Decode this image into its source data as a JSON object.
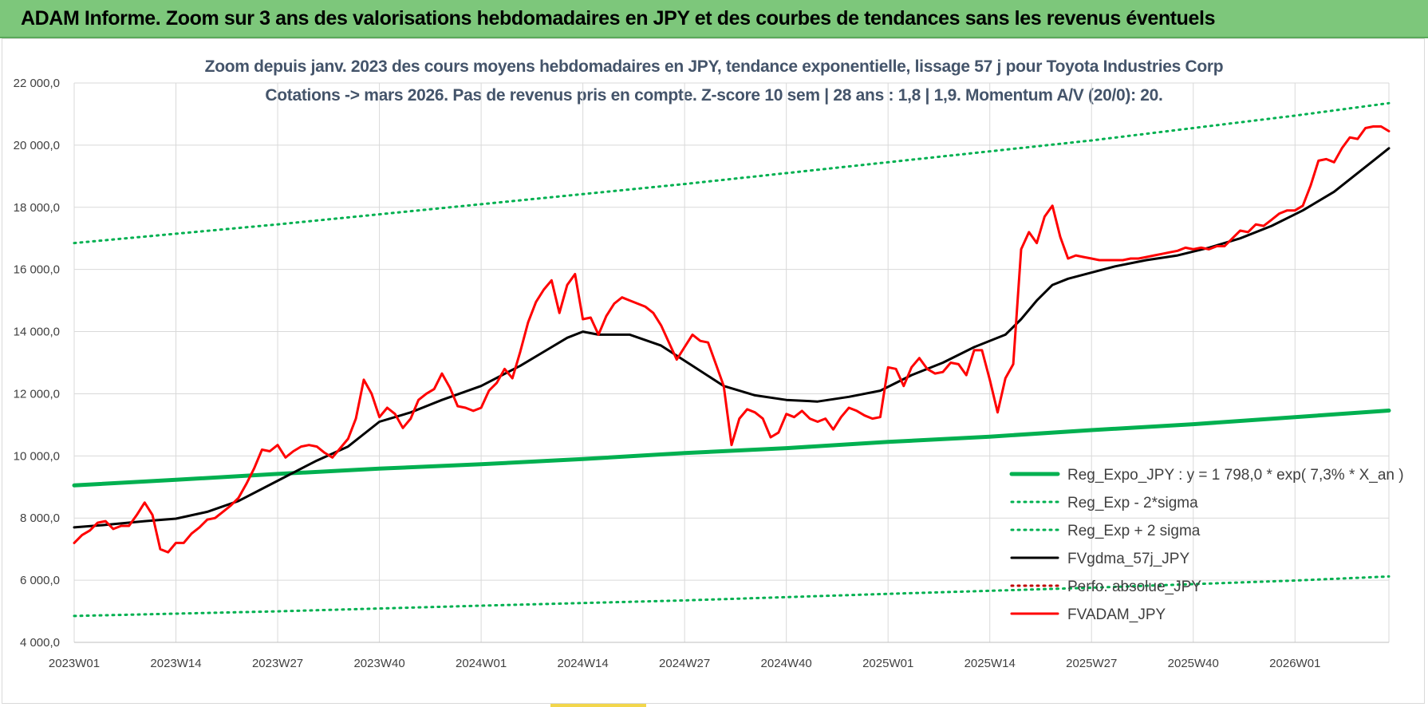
{
  "header": {
    "title": "ADAM Informe. Zoom sur 3 ans des valorisations hebdomadaires en JPY et des courbes de tendances sans les revenus éventuels"
  },
  "chart_data": {
    "type": "line",
    "title_line1": "Zoom depuis janv. 2023 des cours moyens hebdomadaires en JPY, tendance exponentielle, lissage 57 j pour Toyota Industries Corp",
    "title_line2": "Cotations -> mars 2026. Pas de revenus pris en compte. Z-score 10 sem | 28 ans : 1,8 | 1,9. Momentum A/V (20/0): 20.",
    "x_tick_labels": [
      "2023W01",
      "2023W14",
      "2023W27",
      "2023W40",
      "2024W01",
      "2024W14",
      "2024W27",
      "2024W40",
      "2025W01",
      "2025W14",
      "2025W27",
      "2025W40",
      "2026W01"
    ],
    "y_tick_labels": [
      "4 000,0",
      "6 000,0",
      "8 000,0",
      "10 000,0",
      "12 000,0",
      "14 000,0",
      "16 000,0",
      "18 000,0",
      "20 000,0",
      "22 000,0"
    ],
    "ylim": [
      4000,
      22000
    ],
    "grid": true,
    "legend_position": "bottom-right",
    "colors": {
      "trend": "#00b050",
      "band": "#00b050",
      "smooth": "#000000",
      "perfo": "#c00000",
      "price": "#ff0000"
    },
    "series": [
      {
        "name": "Reg_Expo_JPY : y = 1 798,0 * exp( 7,3% *  X_an )",
        "style": "thick-solid",
        "color": "#00b050",
        "points": [
          [
            1,
            9050
          ],
          [
            14,
            9230
          ],
          [
            27,
            9420
          ],
          [
            40,
            9590
          ],
          [
            53,
            9730
          ],
          [
            66,
            9900
          ],
          [
            79,
            10090
          ],
          [
            92,
            10250
          ],
          [
            105,
            10450
          ],
          [
            118,
            10620
          ],
          [
            131,
            10830
          ],
          [
            144,
            11020
          ],
          [
            157,
            11250
          ],
          [
            169,
            11460
          ]
        ]
      },
      {
        "name": "Reg_Exp - 2*sigma",
        "style": "dotted",
        "color": "#00b050",
        "points": [
          [
            1,
            4850
          ],
          [
            27,
            5000
          ],
          [
            53,
            5180
          ],
          [
            79,
            5350
          ],
          [
            105,
            5560
          ],
          [
            131,
            5760
          ],
          [
            157,
            5990
          ],
          [
            169,
            6120
          ]
        ]
      },
      {
        "name": "Reg_Exp + 2 sigma",
        "style": "dotted",
        "color": "#00b050",
        "points": [
          [
            1,
            16850
          ],
          [
            27,
            17450
          ],
          [
            53,
            18100
          ],
          [
            79,
            18750
          ],
          [
            105,
            19450
          ],
          [
            131,
            20150
          ],
          [
            157,
            20950
          ],
          [
            169,
            21350
          ]
        ]
      },
      {
        "name": "FVgdma_57j_JPY",
        "style": "solid",
        "color": "#000000",
        "points": [
          [
            1,
            7700
          ],
          [
            5,
            7780
          ],
          [
            10,
            7900
          ],
          [
            14,
            7980
          ],
          [
            18,
            8200
          ],
          [
            22,
            8550
          ],
          [
            27,
            9200
          ],
          [
            32,
            9850
          ],
          [
            36,
            10300
          ],
          [
            40,
            11100
          ],
          [
            44,
            11400
          ],
          [
            48,
            11800
          ],
          [
            53,
            12250
          ],
          [
            58,
            12900
          ],
          [
            62,
            13500
          ],
          [
            64,
            13800
          ],
          [
            66,
            14000
          ],
          [
            68,
            13900
          ],
          [
            72,
            13900
          ],
          [
            76,
            13550
          ],
          [
            80,
            12900
          ],
          [
            84,
            12250
          ],
          [
            88,
            11950
          ],
          [
            92,
            11800
          ],
          [
            96,
            11750
          ],
          [
            100,
            11900
          ],
          [
            104,
            12100
          ],
          [
            108,
            12600
          ],
          [
            112,
            13000
          ],
          [
            116,
            13500
          ],
          [
            120,
            13900
          ],
          [
            122,
            14400
          ],
          [
            124,
            15000
          ],
          [
            126,
            15500
          ],
          [
            128,
            15700
          ],
          [
            131,
            15900
          ],
          [
            134,
            16100
          ],
          [
            138,
            16300
          ],
          [
            142,
            16450
          ],
          [
            146,
            16700
          ],
          [
            150,
            17000
          ],
          [
            154,
            17400
          ],
          [
            158,
            17900
          ],
          [
            162,
            18500
          ],
          [
            165,
            19100
          ],
          [
            167,
            19500
          ],
          [
            169,
            19900
          ]
        ]
      },
      {
        "name": "Perfo. absolue_JPY",
        "style": "dotted",
        "color": "#c00000",
        "points": []
      },
      {
        "name": "FVADAM_JPY",
        "style": "solid",
        "color": "#ff0000",
        "points": [
          [
            1,
            7200
          ],
          [
            2,
            7450
          ],
          [
            3,
            7600
          ],
          [
            4,
            7850
          ],
          [
            5,
            7900
          ],
          [
            6,
            7650
          ],
          [
            7,
            7750
          ],
          [
            8,
            7750
          ],
          [
            9,
            8100
          ],
          [
            10,
            8500
          ],
          [
            11,
            8100
          ],
          [
            12,
            7000
          ],
          [
            13,
            6900
          ],
          [
            14,
            7200
          ],
          [
            15,
            7200
          ],
          [
            16,
            7500
          ],
          [
            17,
            7700
          ],
          [
            18,
            7950
          ],
          [
            19,
            8000
          ],
          [
            20,
            8200
          ],
          [
            21,
            8400
          ],
          [
            22,
            8650
          ],
          [
            23,
            9100
          ],
          [
            24,
            9600
          ],
          [
            25,
            10200
          ],
          [
            26,
            10150
          ],
          [
            27,
            10350
          ],
          [
            28,
            9950
          ],
          [
            29,
            10150
          ],
          [
            30,
            10300
          ],
          [
            31,
            10350
          ],
          [
            32,
            10300
          ],
          [
            33,
            10100
          ],
          [
            34,
            9950
          ],
          [
            35,
            10250
          ],
          [
            36,
            10550
          ],
          [
            37,
            11200
          ],
          [
            38,
            12450
          ],
          [
            39,
            12000
          ],
          [
            40,
            11250
          ],
          [
            41,
            11550
          ],
          [
            42,
            11350
          ],
          [
            43,
            10900
          ],
          [
            44,
            11200
          ],
          [
            45,
            11800
          ],
          [
            46,
            12000
          ],
          [
            47,
            12150
          ],
          [
            48,
            12650
          ],
          [
            49,
            12200
          ],
          [
            50,
            11600
          ],
          [
            51,
            11550
          ],
          [
            52,
            11450
          ],
          [
            53,
            11550
          ],
          [
            54,
            12100
          ],
          [
            55,
            12350
          ],
          [
            56,
            12800
          ],
          [
            57,
            12500
          ],
          [
            58,
            13350
          ],
          [
            59,
            14300
          ],
          [
            60,
            14950
          ],
          [
            61,
            15350
          ],
          [
            62,
            15650
          ],
          [
            63,
            14600
          ],
          [
            64,
            15500
          ],
          [
            65,
            15850
          ],
          [
            66,
            14400
          ],
          [
            67,
            14450
          ],
          [
            68,
            13900
          ],
          [
            69,
            14500
          ],
          [
            70,
            14900
          ],
          [
            71,
            15100
          ],
          [
            72,
            15000
          ],
          [
            73,
            14900
          ],
          [
            74,
            14800
          ],
          [
            75,
            14600
          ],
          [
            76,
            14200
          ],
          [
            77,
            13650
          ],
          [
            78,
            13100
          ],
          [
            79,
            13500
          ],
          [
            80,
            13900
          ],
          [
            81,
            13700
          ],
          [
            82,
            13650
          ],
          [
            83,
            12950
          ],
          [
            84,
            12250
          ],
          [
            85,
            10350
          ],
          [
            86,
            11200
          ],
          [
            87,
            11500
          ],
          [
            88,
            11400
          ],
          [
            89,
            11200
          ],
          [
            90,
            10600
          ],
          [
            91,
            10750
          ],
          [
            92,
            11350
          ],
          [
            93,
            11250
          ],
          [
            94,
            11450
          ],
          [
            95,
            11200
          ],
          [
            96,
            11100
          ],
          [
            97,
            11200
          ],
          [
            98,
            10850
          ],
          [
            99,
            11250
          ],
          [
            100,
            11550
          ],
          [
            101,
            11450
          ],
          [
            102,
            11300
          ],
          [
            103,
            11200
          ],
          [
            104,
            11250
          ],
          [
            105,
            12850
          ],
          [
            106,
            12800
          ],
          [
            107,
            12250
          ],
          [
            108,
            12850
          ],
          [
            109,
            13150
          ],
          [
            110,
            12800
          ],
          [
            111,
            12650
          ],
          [
            112,
            12700
          ],
          [
            113,
            13000
          ],
          [
            114,
            12950
          ],
          [
            115,
            12600
          ],
          [
            116,
            13400
          ],
          [
            117,
            13400
          ],
          [
            118,
            12450
          ],
          [
            119,
            11400
          ],
          [
            120,
            12500
          ],
          [
            121,
            12950
          ],
          [
            122,
            16650
          ],
          [
            123,
            17200
          ],
          [
            124,
            16850
          ],
          [
            125,
            17700
          ],
          [
            126,
            18050
          ],
          [
            127,
            17050
          ],
          [
            128,
            16350
          ],
          [
            129,
            16450
          ],
          [
            130,
            16400
          ],
          [
            131,
            16350
          ],
          [
            132,
            16300
          ],
          [
            133,
            16300
          ],
          [
            134,
            16300
          ],
          [
            135,
            16300
          ],
          [
            136,
            16350
          ],
          [
            137,
            16350
          ],
          [
            138,
            16400
          ],
          [
            139,
            16450
          ],
          [
            140,
            16500
          ],
          [
            141,
            16550
          ],
          [
            142,
            16600
          ],
          [
            143,
            16700
          ],
          [
            144,
            16650
          ],
          [
            145,
            16700
          ],
          [
            146,
            16650
          ],
          [
            147,
            16750
          ],
          [
            148,
            16750
          ],
          [
            149,
            17000
          ],
          [
            150,
            17250
          ],
          [
            151,
            17200
          ],
          [
            152,
            17450
          ],
          [
            153,
            17400
          ],
          [
            154,
            17600
          ],
          [
            155,
            17800
          ],
          [
            156,
            17900
          ],
          [
            157,
            17900
          ],
          [
            158,
            18050
          ],
          [
            159,
            18700
          ],
          [
            160,
            19500
          ],
          [
            161,
            19550
          ],
          [
            162,
            19450
          ],
          [
            163,
            19900
          ],
          [
            164,
            20250
          ],
          [
            165,
            20200
          ],
          [
            166,
            20550
          ],
          [
            167,
            20600
          ],
          [
            168,
            20600
          ],
          [
            169,
            20450
          ]
        ]
      }
    ]
  }
}
